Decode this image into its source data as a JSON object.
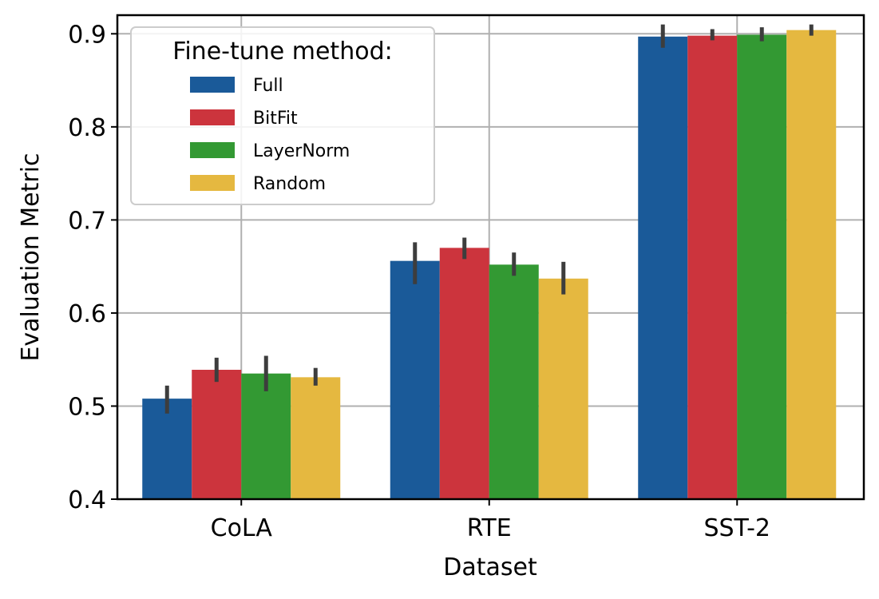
{
  "chart_data": {
    "type": "bar",
    "xlabel": "Dataset",
    "ylabel": "Evaluation Metric",
    "categories": [
      "CoLA",
      "RTE",
      "SST-2"
    ],
    "ylim": [
      0.4,
      0.92
    ],
    "yticks": [
      0.4,
      0.5,
      0.6,
      0.7,
      0.8,
      0.9
    ],
    "ytick_labels": [
      "0.4",
      "0.5",
      "0.6",
      "0.7",
      "0.8",
      "0.9"
    ],
    "grid": true,
    "legend": {
      "title": "Fine-tune method:",
      "placement": "top-left"
    },
    "series": [
      {
        "name": "Full",
        "color": "#1a5a99",
        "values": [
          0.508,
          0.656,
          0.897
        ],
        "err_low": [
          0.492,
          0.631,
          0.885
        ],
        "err_high": [
          0.522,
          0.676,
          0.91
        ]
      },
      {
        "name": "BitFit",
        "color": "#cc343d",
        "values": [
          0.539,
          0.67,
          0.898
        ],
        "err_low": [
          0.526,
          0.658,
          0.893
        ],
        "err_high": [
          0.552,
          0.681,
          0.905
        ]
      },
      {
        "name": "LayerNorm",
        "color": "#339933",
        "values": [
          0.535,
          0.652,
          0.899
        ],
        "err_low": [
          0.516,
          0.64,
          0.892
        ],
        "err_high": [
          0.554,
          0.665,
          0.907
        ]
      },
      {
        "name": "Random",
        "color": "#e5b840",
        "values": [
          0.531,
          0.637,
          0.904
        ],
        "err_low": [
          0.522,
          0.62,
          0.898
        ],
        "err_high": [
          0.541,
          0.655,
          0.91
        ]
      }
    ]
  }
}
